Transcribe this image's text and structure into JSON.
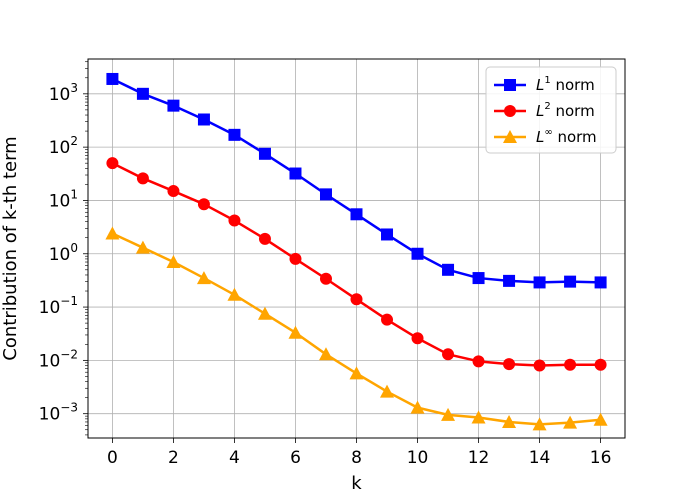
{
  "chart_data": {
    "type": "line",
    "title": "",
    "xlabel": "k",
    "ylabel": "Contribution of k-th term",
    "xlim": [
      -0.8,
      16.8
    ],
    "ylim": [
      0.00035,
      4500
    ],
    "yscale": "log",
    "xticks": [
      0,
      2,
      4,
      6,
      8,
      10,
      12,
      14,
      16
    ],
    "xtick_labels": [
      "0",
      "2",
      "4",
      "6",
      "8",
      "10",
      "12",
      "14",
      "16"
    ],
    "yticks": [
      0.001,
      0.01,
      0.1,
      1,
      10,
      100,
      1000
    ],
    "ytick_labels": [
      {
        "base": "10",
        "exp": "−3"
      },
      {
        "base": "10",
        "exp": "−2"
      },
      {
        "base": "10",
        "exp": "−1"
      },
      {
        "base": "10",
        "exp": "0"
      },
      {
        "base": "10",
        "exp": "1"
      },
      {
        "base": "10",
        "exp": "2"
      },
      {
        "base": "10",
        "exp": "3"
      }
    ],
    "grid": true,
    "legend_position": "top-right",
    "x": [
      0,
      1,
      2,
      3,
      4,
      5,
      6,
      7,
      8,
      9,
      10,
      11,
      12,
      13,
      14,
      15,
      16
    ],
    "series": [
      {
        "name": "L1 norm",
        "label_base": "L",
        "label_sup": "1",
        "label_rest": " norm",
        "color": "#0000ff",
        "marker": "square",
        "values": [
          1900,
          1000,
          600,
          330,
          170,
          75,
          32,
          13,
          5.5,
          2.3,
          1.0,
          0.5,
          0.35,
          0.31,
          0.29,
          0.3,
          0.29
        ]
      },
      {
        "name": "L2 norm",
        "label_base": "L",
        "label_sup": "2",
        "label_rest": " norm",
        "color": "#ff0000",
        "marker": "circle",
        "values": [
          50,
          26,
          15,
          8.5,
          4.2,
          1.9,
          0.8,
          0.34,
          0.14,
          0.058,
          0.026,
          0.013,
          0.0096,
          0.0085,
          0.008,
          0.0083,
          0.0083
        ]
      },
      {
        "name": "L∞ norm",
        "label_base": "L",
        "label_sup": "∞",
        "label_rest": " norm",
        "color": "#ffa500",
        "marker": "triangle",
        "values": [
          2.4,
          1.3,
          0.7,
          0.35,
          0.17,
          0.075,
          0.033,
          0.013,
          0.0057,
          0.0026,
          0.0013,
          0.00095,
          0.00085,
          0.0007,
          0.00063,
          0.00068,
          0.00077
        ]
      }
    ]
  }
}
